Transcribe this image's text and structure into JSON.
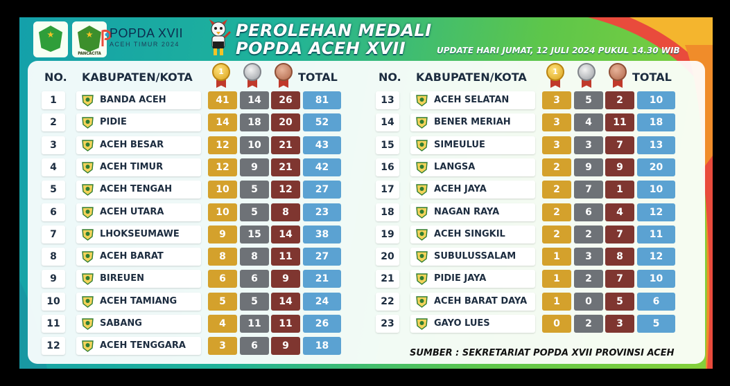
{
  "header": {
    "logo1_caption": "",
    "logo2_caption": "PANCACITA",
    "popda_line1": "POPDA XVII",
    "popda_line2": "ACEH TIMUR 2024",
    "title_line1": "PEROLEHAN MEDALI",
    "title_line2": "POPDA ACEH XVII",
    "update_text": "UPDATE HARI JUMAT, 12 JULI 2024 PUKUL 14.30 WIB"
  },
  "columns": {
    "no": "NO.",
    "region": "KABUPATEN/KOTA",
    "total": "TOTAL",
    "gold_medal_number": "1"
  },
  "colors": {
    "gold": "#d4a12c",
    "silver": "#6e7277",
    "bronze": "#7f3630",
    "total": "#5ba2d2",
    "frame_start": "#14a0aa",
    "frame_end": "#86d13a"
  },
  "left_table": [
    {
      "no": "1",
      "name": "BANDA ACEH",
      "gold": "41",
      "silver": "14",
      "bronze": "26",
      "total": "81",
      "icon": "banda-aceh-emblem-icon"
    },
    {
      "no": "2",
      "name": "PIDIE",
      "gold": "14",
      "silver": "18",
      "bronze": "20",
      "total": "52",
      "icon": "pidie-emblem-icon"
    },
    {
      "no": "3",
      "name": "ACEH BESAR",
      "gold": "12",
      "silver": "10",
      "bronze": "21",
      "total": "43",
      "icon": "aceh-besar-emblem-icon"
    },
    {
      "no": "4",
      "name": "ACEH TIMUR",
      "gold": "12",
      "silver": "9",
      "bronze": "21",
      "total": "42",
      "icon": "aceh-timur-emblem-icon"
    },
    {
      "no": "5",
      "name": "ACEH TENGAH",
      "gold": "10",
      "silver": "5",
      "bronze": "12",
      "total": "27",
      "icon": "aceh-tengah-emblem-icon"
    },
    {
      "no": "6",
      "name": "ACEH UTARA",
      "gold": "10",
      "silver": "5",
      "bronze": "8",
      "total": "23",
      "icon": "aceh-utara-emblem-icon"
    },
    {
      "no": "7",
      "name": "LHOKSEUMAWE",
      "gold": "9",
      "silver": "15",
      "bronze": "14",
      "total": "38",
      "icon": "lhokseumawe-emblem-icon"
    },
    {
      "no": "8",
      "name": "ACEH BARAT",
      "gold": "8",
      "silver": "8",
      "bronze": "11",
      "total": "27",
      "icon": "aceh-barat-emblem-icon"
    },
    {
      "no": "9",
      "name": "BIREUEN",
      "gold": "6",
      "silver": "6",
      "bronze": "9",
      "total": "21",
      "icon": "bireuen-emblem-icon"
    },
    {
      "no": "10",
      "name": "ACEH TAMIANG",
      "gold": "5",
      "silver": "5",
      "bronze": "14",
      "total": "24",
      "icon": "aceh-tamiang-emblem-icon"
    },
    {
      "no": "11",
      "name": "SABANG",
      "gold": "4",
      "silver": "11",
      "bronze": "11",
      "total": "26",
      "icon": "sabang-emblem-icon"
    },
    {
      "no": "12",
      "name": "ACEH TENGGARA",
      "gold": "3",
      "silver": "6",
      "bronze": "9",
      "total": "18",
      "icon": "aceh-tenggara-emblem-icon"
    }
  ],
  "right_table": [
    {
      "no": "13",
      "name": "ACEH SELATAN",
      "gold": "3",
      "silver": "5",
      "bronze": "2",
      "total": "10",
      "icon": "aceh-selatan-emblem-icon"
    },
    {
      "no": "14",
      "name": "BENER MERIAH",
      "gold": "3",
      "silver": "4",
      "bronze": "11",
      "total": "18",
      "icon": "bener-meriah-emblem-icon"
    },
    {
      "no": "15",
      "name": "SIMEULUE",
      "gold": "3",
      "silver": "3",
      "bronze": "7",
      "total": "13",
      "icon": "simeulue-emblem-icon"
    },
    {
      "no": "16",
      "name": "LANGSA",
      "gold": "2",
      "silver": "9",
      "bronze": "9",
      "total": "20",
      "icon": "langsa-emblem-icon"
    },
    {
      "no": "17",
      "name": "ACEH JAYA",
      "gold": "2",
      "silver": "7",
      "bronze": "1",
      "total": "10",
      "icon": "aceh-jaya-emblem-icon"
    },
    {
      "no": "18",
      "name": "NAGAN RAYA",
      "gold": "2",
      "silver": "6",
      "bronze": "4",
      "total": "12",
      "icon": "nagan-raya-emblem-icon"
    },
    {
      "no": "19",
      "name": "ACEH SINGKIL",
      "gold": "2",
      "silver": "2",
      "bronze": "7",
      "total": "11",
      "icon": "aceh-singkil-emblem-icon"
    },
    {
      "no": "20",
      "name": "SUBULUSSALAM",
      "gold": "1",
      "silver": "3",
      "bronze": "8",
      "total": "12",
      "icon": "subulussalam-emblem-icon"
    },
    {
      "no": "21",
      "name": "PIDIE JAYA",
      "gold": "1",
      "silver": "2",
      "bronze": "7",
      "total": "10",
      "icon": "pidie-jaya-emblem-icon"
    },
    {
      "no": "22",
      "name": "ACEH BARAT DAYA",
      "gold": "1",
      "silver": "0",
      "bronze": "5",
      "total": "6",
      "icon": "aceh-barat-daya-emblem-icon"
    },
    {
      "no": "23",
      "name": "GAYO LUES",
      "gold": "0",
      "silver": "2",
      "bronze": "3",
      "total": "5",
      "icon": "gayo-lues-emblem-icon"
    }
  ],
  "footer": {
    "source": "SUMBER : SEKRETARIAT POPDA XVII PROVINSI ACEH"
  }
}
